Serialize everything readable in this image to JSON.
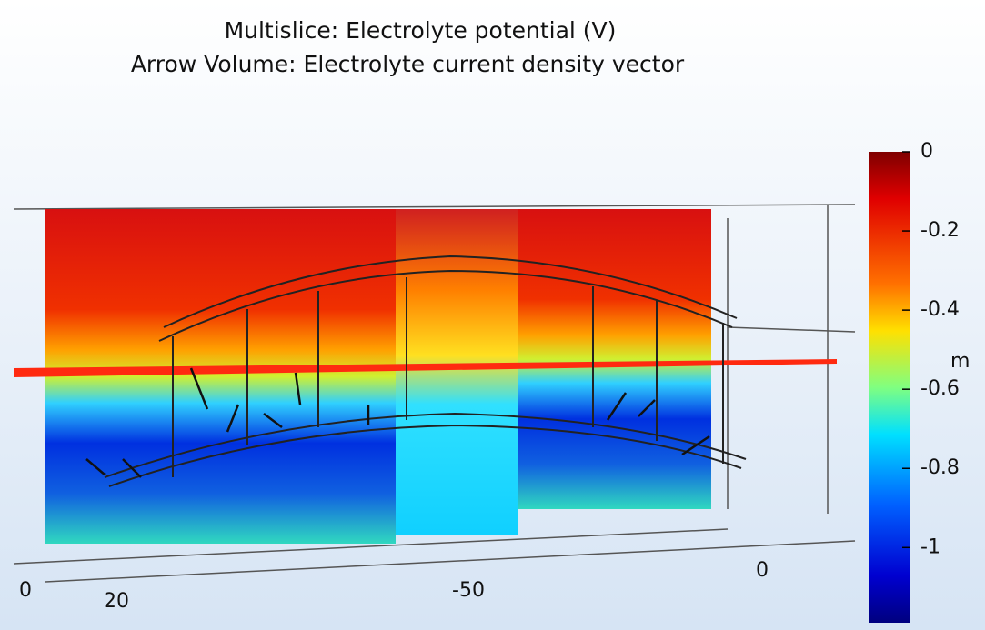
{
  "title_lines": [
    "Multislice: Electrolyte potential (V)",
    "Arrow Volume: Electrolyte current density vector"
  ],
  "colorbar": {
    "lim": [
      -1.19,
      0
    ],
    "ticks": [
      0,
      -0.2,
      -0.4,
      -0.6,
      -0.8,
      -1
    ]
  },
  "axis_labels": [
    0,
    20,
    -50,
    0
  ],
  "unit_label": "m"
}
